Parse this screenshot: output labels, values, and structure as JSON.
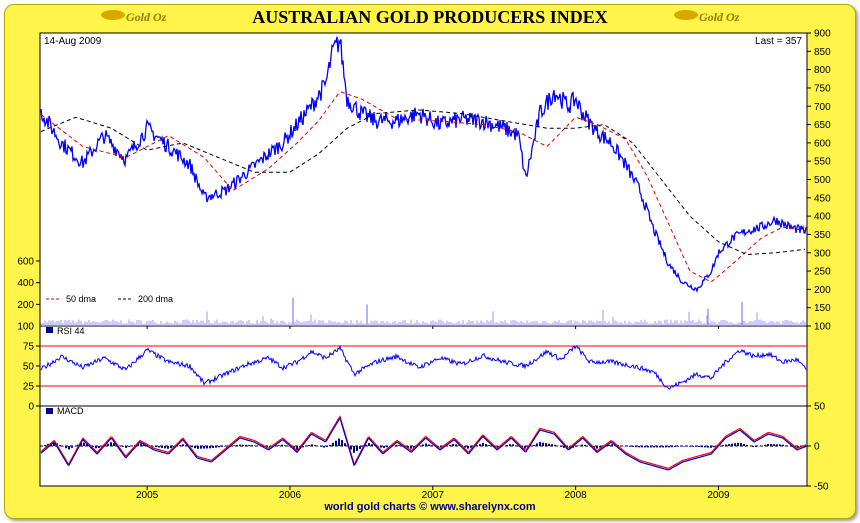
{
  "header": {
    "title": "AUSTRALIAN GOLD PRODUCERS INDEX",
    "logo_left": "Gold Oz",
    "logo_right": "Gold Oz"
  },
  "main_panel": {
    "date_label": "14-Aug 2009",
    "last_label": "Last = 357",
    "legend": {
      "dma50": "50 dma",
      "dma200": "200 dma"
    }
  },
  "rsi_panel": {
    "label": "RSI 44"
  },
  "macd_panel": {
    "label": "MACD"
  },
  "footer": {
    "text": "world gold charts © www.sharelynx.com"
  },
  "colors": {
    "price": "#0000ff",
    "dma50": "#dd0000",
    "dma200": "#000000",
    "volume": "#9999ff",
    "rsi_band": "#ff0000",
    "macd_signal": "#ff0000",
    "macd_line": "#0000cc",
    "background": "#fff54a"
  },
  "chart_data": [
    {
      "type": "line",
      "title": "AUSTRALIAN GOLD PRODUCERS INDEX",
      "x_ticks": [
        "2005",
        "2006",
        "2007",
        "2008",
        "2009"
      ],
      "x_range": [
        2004.25,
        2009.62
      ],
      "ylim": [
        100,
        900
      ],
      "y_ticks_right": [
        100,
        150,
        200,
        250,
        300,
        350,
        400,
        450,
        500,
        550,
        600,
        650,
        700,
        750,
        800,
        850,
        900
      ],
      "series": [
        {
          "name": "price",
          "x": [
            2004.25,
            2004.4,
            2004.55,
            2004.7,
            2004.85,
            2005.0,
            2005.15,
            2005.3,
            2005.4,
            2005.55,
            2005.7,
            2005.85,
            2005.95,
            2006.05,
            2006.15,
            2006.25,
            2006.3,
            2006.35,
            2006.4,
            2006.5,
            2006.6,
            2006.75,
            2006.9,
            2007.05,
            2007.2,
            2007.35,
            2007.5,
            2007.6,
            2007.65,
            2007.75,
            2007.85,
            2007.95,
            2008.0,
            2008.05,
            2008.15,
            2008.25,
            2008.35,
            2008.45,
            2008.55,
            2008.65,
            2008.75,
            2008.85,
            2008.95,
            2009.0,
            2009.1,
            2009.2,
            2009.3,
            2009.4,
            2009.5,
            2009.62
          ],
          "values": [
            690,
            600,
            545,
            620,
            555,
            640,
            590,
            540,
            450,
            470,
            520,
            570,
            600,
            650,
            700,
            760,
            850,
            880,
            720,
            680,
            660,
            660,
            680,
            650,
            665,
            660,
            640,
            620,
            500,
            680,
            740,
            700,
            720,
            680,
            630,
            600,
            540,
            470,
            360,
            270,
            220,
            200,
            250,
            300,
            340,
            360,
            370,
            390,
            370,
            357
          ]
        },
        {
          "name": "50 dma",
          "x": [
            2004.25,
            2004.55,
            2004.85,
            2005.15,
            2005.4,
            2005.6,
            2005.85,
            2006.05,
            2006.2,
            2006.35,
            2006.5,
            2006.75,
            2007.05,
            2007.35,
            2007.6,
            2007.8,
            2008.0,
            2008.15,
            2008.35,
            2008.5,
            2008.65,
            2008.8,
            2008.95,
            2009.1,
            2009.3,
            2009.45,
            2009.62
          ],
          "values": [
            680,
            590,
            560,
            620,
            560,
            470,
            530,
            600,
            660,
            740,
            720,
            665,
            660,
            650,
            630,
            590,
            670,
            650,
            610,
            510,
            380,
            250,
            220,
            270,
            340,
            370,
            360
          ]
        },
        {
          "name": "200 dma",
          "x": [
            2004.25,
            2004.5,
            2004.75,
            2005.0,
            2005.25,
            2005.5,
            2005.75,
            2006.0,
            2006.2,
            2006.4,
            2006.6,
            2006.9,
            2007.2,
            2007.5,
            2007.8,
            2008.0,
            2008.2,
            2008.4,
            2008.6,
            2008.8,
            2009.0,
            2009.2,
            2009.4,
            2009.62
          ],
          "values": [
            630,
            670,
            640,
            580,
            600,
            560,
            520,
            520,
            570,
            640,
            680,
            690,
            680,
            660,
            640,
            640,
            650,
            600,
            500,
            400,
            330,
            295,
            300,
            310
          ]
        }
      ]
    },
    {
      "type": "bar",
      "title": "Volume",
      "ylim": [
        0,
        600
      ],
      "y_ticks_left": [
        200,
        400,
        600
      ]
    },
    {
      "type": "line",
      "title": "RSI 44",
      "ylim": [
        0,
        100
      ],
      "y_ticks_left": [
        0,
        25,
        50,
        75
      ],
      "bands": [
        25,
        75
      ],
      "series": [
        {
          "name": "RSI 44",
          "x": [
            2004.25,
            2004.4,
            2004.55,
            2004.7,
            2004.85,
            2005.0,
            2005.15,
            2005.3,
            2005.4,
            2005.55,
            2005.7,
            2005.85,
            2005.95,
            2006.05,
            2006.15,
            2006.25,
            2006.35,
            2006.45,
            2006.6,
            2006.75,
            2006.9,
            2007.05,
            2007.2,
            2007.35,
            2007.5,
            2007.65,
            2007.8,
            2007.9,
            2008.0,
            2008.1,
            2008.25,
            2008.4,
            2008.5,
            2008.55,
            2008.65,
            2008.75,
            2008.85,
            2008.95,
            2009.05,
            2009.15,
            2009.25,
            2009.35,
            2009.45,
            2009.55,
            2009.62
          ],
          "values": [
            45,
            62,
            48,
            60,
            45,
            70,
            55,
            50,
            28,
            40,
            52,
            60,
            48,
            55,
            68,
            60,
            72,
            40,
            55,
            62,
            48,
            60,
            52,
            63,
            55,
            50,
            68,
            58,
            75,
            55,
            55,
            50,
            45,
            42,
            22,
            30,
            40,
            35,
            55,
            70,
            62,
            65,
            55,
            58,
            44
          ]
        }
      ]
    },
    {
      "type": "line",
      "title": "MACD",
      "ylim": [
        -50,
        50
      ],
      "y_ticks_right": [
        -50,
        0,
        50
      ],
      "series": [
        {
          "name": "MACD",
          "x": [
            2004.25,
            2004.35,
            2004.45,
            2004.55,
            2004.65,
            2004.75,
            2004.85,
            2004.95,
            2005.05,
            2005.15,
            2005.25,
            2005.35,
            2005.45,
            2005.55,
            2005.65,
            2005.75,
            2005.85,
            2005.95,
            2006.05,
            2006.15,
            2006.25,
            2006.35,
            2006.45,
            2006.55,
            2006.65,
            2006.75,
            2006.85,
            2006.95,
            2007.05,
            2007.15,
            2007.25,
            2007.35,
            2007.45,
            2007.55,
            2007.65,
            2007.75,
            2007.85,
            2007.95,
            2008.05,
            2008.15,
            2008.25,
            2008.35,
            2008.45,
            2008.55,
            2008.65,
            2008.75,
            2008.85,
            2008.95,
            2009.05,
            2009.15,
            2009.25,
            2009.35,
            2009.45,
            2009.55,
            2009.62
          ],
          "values": [
            -10,
            5,
            -25,
            8,
            -10,
            10,
            -15,
            5,
            -5,
            -10,
            8,
            -15,
            -20,
            -5,
            10,
            5,
            -5,
            8,
            -8,
            15,
            5,
            35,
            -25,
            10,
            -10,
            5,
            -8,
            10,
            -5,
            8,
            -10,
            12,
            -5,
            10,
            -8,
            20,
            15,
            -5,
            10,
            -8,
            5,
            -10,
            -20,
            -25,
            -30,
            -20,
            -15,
            -10,
            10,
            20,
            5,
            15,
            10,
            -5,
            0
          ]
        },
        {
          "name": "Signal",
          "x": [
            2004.25,
            2004.45,
            2004.65,
            2004.85,
            2005.05,
            2005.25,
            2005.45,
            2005.65,
            2005.85,
            2006.05,
            2006.25,
            2006.45,
            2006.65,
            2006.85,
            2007.05,
            2007.25,
            2007.45,
            2007.65,
            2007.85,
            2008.05,
            2008.25,
            2008.45,
            2008.65,
            2008.85,
            2009.05,
            2009.25,
            2009.45,
            2009.62
          ],
          "values": [
            -8,
            -12,
            0,
            -8,
            -2,
            2,
            -12,
            5,
            0,
            5,
            12,
            0,
            -2,
            2,
            0,
            0,
            2,
            2,
            10,
            4,
            -2,
            -15,
            -25,
            -12,
            5,
            10,
            5,
            0
          ]
        }
      ]
    }
  ]
}
